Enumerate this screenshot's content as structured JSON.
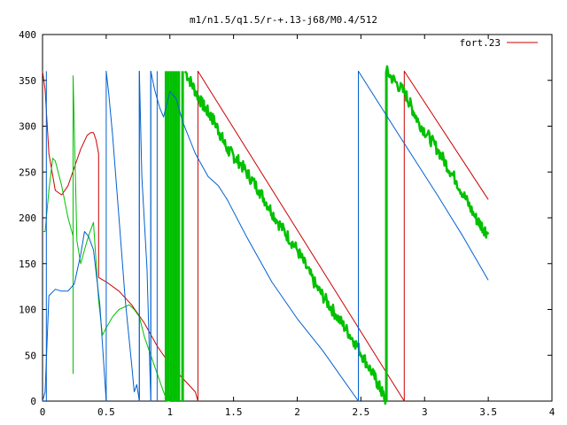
{
  "chart_data": {
    "type": "line",
    "title": "m1/n1.5/q1.5/r-+.13-j68/M0.4/512",
    "xlabel": "",
    "ylabel": "",
    "xlim": [
      0,
      4
    ],
    "ylim": [
      0,
      400
    ],
    "x_ticks": [
      {
        "value": 0,
        "label": "0"
      },
      {
        "value": 0.5,
        "label": "0.5"
      },
      {
        "value": 1,
        "label": "1"
      },
      {
        "value": 1.5,
        "label": "1.5"
      },
      {
        "value": 2,
        "label": "2"
      },
      {
        "value": 2.5,
        "label": "2.5"
      },
      {
        "value": 3,
        "label": "3"
      },
      {
        "value": 3.5,
        "label": "3.5"
      },
      {
        "value": 4,
        "label": "4"
      }
    ],
    "y_ticks": [
      {
        "value": 0,
        "label": "0"
      },
      {
        "value": 50,
        "label": "50"
      },
      {
        "value": 100,
        "label": "100"
      },
      {
        "value": 150,
        "label": "150"
      },
      {
        "value": 200,
        "label": "200"
      },
      {
        "value": 250,
        "label": "250"
      },
      {
        "value": 300,
        "label": "300"
      },
      {
        "value": 350,
        "label": "350"
      },
      {
        "value": 400,
        "label": "400"
      }
    ],
    "grid": false,
    "legend": {
      "placement": "top-right",
      "entries": [
        "fort.23"
      ]
    },
    "series": [
      {
        "name": "fort.23",
        "color": "#cc0000",
        "width": 1,
        "x": [
          0,
          0.02,
          0.05,
          0.1,
          0.15,
          0.2,
          0.25,
          0.3,
          0.35,
          0.38,
          0.4,
          0.42,
          0.44,
          0.44,
          0.5,
          0.6,
          0.7,
          0.8,
          0.9,
          1.0,
          1.1,
          1.2,
          1.22,
          1.22,
          2.84,
          2.84,
          3.5
        ],
        "y": [
          360,
          340,
          270,
          230,
          225,
          235,
          255,
          275,
          290,
          293,
          293,
          285,
          270,
          135,
          130,
          120,
          105,
          85,
          60,
          40,
          25,
          10,
          0,
          360,
          0,
          360,
          220
        ]
      },
      {
        "name": "",
        "color": "#00c000",
        "width": 1,
        "x": [
          0,
          0.02,
          0.05,
          0.08,
          0.1,
          0.15,
          0.2,
          0.24,
          0.24,
          0.24,
          0.27,
          0.3,
          0.33,
          0.36,
          0.4,
          0.44,
          0.47,
          0.5,
          0.55,
          0.6,
          0.68,
          0.72,
          0.76,
          0.8,
          0.85,
          0.9,
          0.95,
          0.98,
          1.0
        ],
        "y": [
          185,
          185,
          230,
          265,
          262,
          235,
          200,
          180,
          30,
          355,
          175,
          150,
          165,
          180,
          195,
          110,
          72,
          80,
          92,
          100,
          105,
          100,
          92,
          70,
          50,
          30,
          10,
          0,
          0
        ]
      },
      {
        "name": "",
        "color": "#00c000",
        "width": 2.5,
        "noisy": true,
        "x": [
          1.12,
          1.25,
          1.35,
          1.45,
          1.55,
          1.7,
          1.85,
          2.0,
          2.15,
          2.3,
          2.45,
          2.6,
          2.7,
          2.7,
          2.85,
          2.95,
          3.1,
          3.25,
          3.4,
          3.5
        ],
        "y": [
          360,
          325,
          305,
          275,
          260,
          230,
          195,
          165,
          125,
          95,
          65,
          28,
          0,
          360,
          335,
          305,
          275,
          240,
          200,
          182
        ]
      },
      {
        "name": "",
        "color": "#00c000",
        "width": 3,
        "vbars": [
          0.97,
          0.99,
          1.01,
          1.03,
          1.05,
          1.07,
          1.1,
          2.7
        ],
        "vbar_range": [
          0,
          360
        ]
      },
      {
        "name": "",
        "color": "#0060d0",
        "width": 1,
        "x": [
          0,
          0.02,
          0.05,
          0.1,
          0.15,
          0.2,
          0.25,
          0.3,
          0.33,
          0.36,
          0.4,
          0.45,
          0.5,
          0.5,
          0.52,
          0.55,
          0.6,
          0.65,
          0.7,
          0.72,
          0.74,
          0.76,
          0.76,
          0.78,
          0.82,
          0.85,
          0.85,
          0.88,
          0.92,
          0.95,
          1.0,
          1.05,
          1.1,
          1.2,
          1.3,
          1.38,
          1.45,
          1.6,
          1.8,
          2.0,
          2.2,
          2.48,
          2.48,
          2.8,
          3.1,
          3.3,
          3.5
        ],
        "y": [
          0,
          10,
          115,
          122,
          120,
          120,
          128,
          160,
          185,
          180,
          165,
          105,
          0,
          360,
          335,
          290,
          200,
          110,
          40,
          10,
          18,
          0,
          360,
          245,
          145,
          0,
          360,
          340,
          320,
          310,
          338,
          330,
          305,
          270,
          245,
          235,
          220,
          180,
          130,
          90,
          55,
          0,
          360,
          290,
          225,
          180,
          132
        ]
      },
      {
        "name": "",
        "color": "#0060d0",
        "width": 1,
        "vbars": [
          0.03,
          0.76,
          0.85,
          0.9
        ],
        "vbar_range": [
          0,
          360
        ]
      }
    ]
  }
}
